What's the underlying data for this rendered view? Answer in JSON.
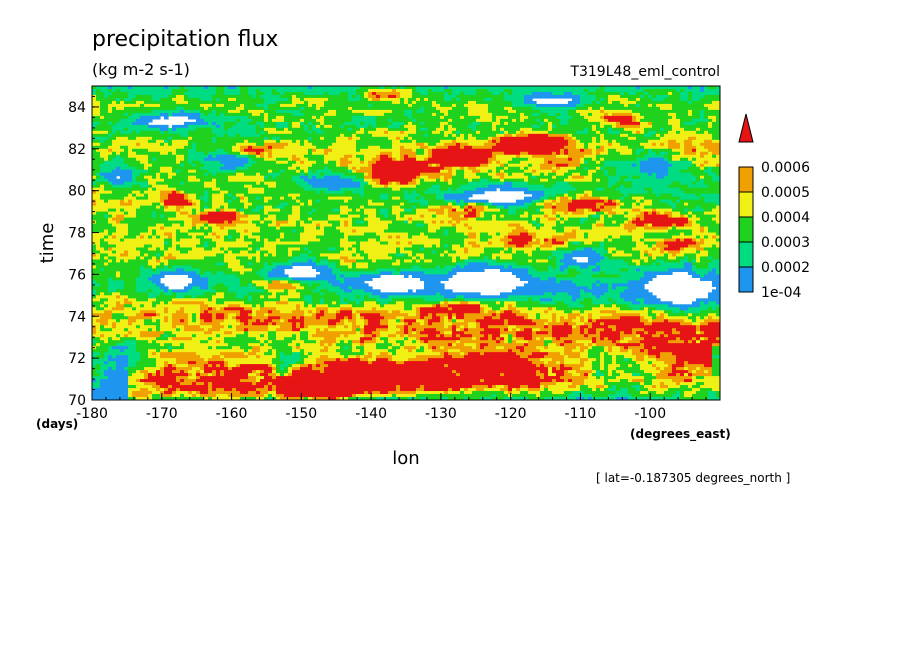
{
  "chart_data": {
    "type": "heatmap",
    "title": "precipitation flux",
    "subtitle": "(kg m-2 s-1)",
    "experiment": "T319L48_eml_control",
    "xlabel": "lon",
    "ylabel": "time",
    "x_units": "(degrees_east)",
    "y_units": "(days)",
    "footnote": "[ lat=-0.187305 degrees_north ]",
    "xlim": [
      -180,
      -90
    ],
    "ylim": [
      70,
      85
    ],
    "x_ticks": [
      -180,
      -170,
      -160,
      -150,
      -140,
      -130,
      -120,
      -110,
      -100
    ],
    "x_tick_labels": [
      "-180",
      "-170",
      "-160",
      "-150",
      "-140",
      "-130",
      "-120",
      "-110",
      "-100"
    ],
    "y_ticks": [
      70,
      72,
      74,
      76,
      78,
      80,
      82,
      84
    ],
    "y_tick_labels": [
      "70",
      "72",
      "74",
      "76",
      "78",
      "80",
      "82",
      "84"
    ],
    "colorbar": {
      "levels": [
        0.0001,
        0.0002,
        0.0003,
        0.0004,
        0.0005,
        0.0006
      ],
      "labels": [
        "1e-04",
        "0.0002",
        "0.0003",
        "0.0004",
        "0.0005",
        "0.0006"
      ],
      "colors": [
        "#1e96f0",
        "#00dc82",
        "#1ed21e",
        "#f0f014",
        "#f0a000",
        "#e61414"
      ],
      "below_color": "#ffffff",
      "extend": "max"
    },
    "bands": [
      {
        "y": 70.4,
        "x0": -173,
        "x1": -93,
        "slope": 0.02,
        "thick": 1.0,
        "amp": 0.00035
      },
      {
        "y": 71.6,
        "x0": -180,
        "x1": -92,
        "slope": -0.01,
        "thick": 0.9,
        "amp": 0.0003
      },
      {
        "y": 73.2,
        "x0": -180,
        "x1": -90,
        "slope": 0.0,
        "thick": 1.3,
        "amp": 0.00026
      },
      {
        "y": 74.6,
        "x0": -180,
        "x1": -90,
        "slope": -0.015,
        "thick": 1.1,
        "amp": 0.00025
      },
      {
        "y": 76.7,
        "x0": -180,
        "x1": -90,
        "slope": 0.0,
        "thick": 1.0,
        "amp": 0.00024
      },
      {
        "y": 78.5,
        "x0": -180,
        "x1": -90,
        "slope": 0.0,
        "thick": 1.3,
        "amp": 0.00028
      },
      {
        "y": 80.3,
        "x0": -180,
        "x1": -90,
        "slope": 0.01,
        "thick": 1.1,
        "amp": 0.00025
      },
      {
        "y": 82.3,
        "x0": -180,
        "x1": -90,
        "slope": 0.0,
        "thick": 1.2,
        "amp": 0.00026
      },
      {
        "y": 84.2,
        "x0": -180,
        "x1": -90,
        "slope": 0.0,
        "thick": 1.0,
        "amp": 0.00022
      }
    ],
    "blobs": [
      {
        "x": -146,
        "y": 70.6,
        "sx": 6.0,
        "sy": 0.45,
        "rot": 0.08,
        "amp": 0.0009
      },
      {
        "x": -137,
        "y": 71.2,
        "sx": 4.0,
        "sy": 0.45,
        "rot": 0.05,
        "amp": 0.0007
      },
      {
        "x": -130,
        "y": 70.8,
        "sx": 3.0,
        "sy": 0.35,
        "rot": 0.0,
        "amp": 0.0004
      },
      {
        "x": -136,
        "y": 80.9,
        "sx": 3.2,
        "sy": 0.5,
        "rot": 0.1,
        "amp": 0.00085
      },
      {
        "x": -127,
        "y": 81.6,
        "sx": 3.5,
        "sy": 0.35,
        "rot": 0.05,
        "amp": 0.00085
      },
      {
        "x": -117,
        "y": 82.2,
        "sx": 4.0,
        "sy": 0.35,
        "rot": 0.1,
        "amp": 0.00085
      },
      {
        "x": -168,
        "y": 79.6,
        "sx": 2.0,
        "sy": 0.3,
        "rot": 0.0,
        "amp": 0.0004
      },
      {
        "x": -162,
        "y": 78.8,
        "sx": 3.0,
        "sy": 0.3,
        "rot": 0.0,
        "amp": 0.00042
      },
      {
        "x": -158,
        "y": 82.0,
        "sx": 4.0,
        "sy": 0.35,
        "rot": 0.0,
        "amp": 0.00035
      },
      {
        "x": -110,
        "y": 79.4,
        "sx": 6.0,
        "sy": 0.4,
        "rot": 0.0,
        "amp": 0.0004
      },
      {
        "x": -98,
        "y": 78.6,
        "sx": 4.0,
        "sy": 0.35,
        "rot": 0.0,
        "amp": 0.0004
      },
      {
        "x": -96,
        "y": 77.5,
        "sx": 2.5,
        "sy": 0.3,
        "rot": 0.0,
        "amp": 0.0004
      },
      {
        "x": -128,
        "y": 74.3,
        "sx": 6.0,
        "sy": 0.35,
        "rot": 0.03,
        "amp": 0.00038
      },
      {
        "x": -126,
        "y": 79.1,
        "sx": 4.0,
        "sy": 0.3,
        "rot": 0.0,
        "amp": 0.00035
      },
      {
        "x": -122,
        "y": 71.8,
        "sx": 4.0,
        "sy": 0.3,
        "rot": -0.05,
        "amp": 0.00035
      },
      {
        "x": -104,
        "y": 83.4,
        "sx": 3.0,
        "sy": 0.3,
        "rot": 0.0,
        "amp": 0.00035
      },
      {
        "x": -138,
        "y": 84.6,
        "sx": 3.0,
        "sy": 0.3,
        "rot": 0.0,
        "amp": 0.00033
      },
      {
        "x": -152,
        "y": 75.5,
        "sx": 4.0,
        "sy": 0.3,
        "rot": 0.0,
        "amp": 0.00033
      },
      {
        "x": -118,
        "y": 77.6,
        "sx": 5.0,
        "sy": 0.35,
        "rot": 0.0,
        "amp": 0.00032
      }
    ],
    "dry_patches": [
      {
        "x": -176,
        "y": 71.8,
        "sx": 4.0,
        "sy": 0.9
      },
      {
        "x": -152,
        "y": 71.6,
        "sx": 3.0,
        "sy": 0.6
      },
      {
        "x": -105,
        "y": 71.5,
        "sx": 8.0,
        "sy": 1.0
      },
      {
        "x": -124,
        "y": 75.8,
        "sx": 6.0,
        "sy": 0.8
      },
      {
        "x": -150,
        "y": 76.2,
        "sx": 4.0,
        "sy": 0.6
      },
      {
        "x": -96,
        "y": 75.4,
        "sx": 4.0,
        "sy": 1.0
      },
      {
        "x": -121,
        "y": 79.7,
        "sx": 8.0,
        "sy": 0.6
      },
      {
        "x": -160,
        "y": 81.7,
        "sx": 4.0,
        "sy": 0.9
      },
      {
        "x": -176,
        "y": 80.6,
        "sx": 3.0,
        "sy": 0.6
      },
      {
        "x": -169,
        "y": 83.3,
        "sx": 6.0,
        "sy": 0.45
      },
      {
        "x": -100,
        "y": 81.2,
        "sx": 6.0,
        "sy": 0.7
      },
      {
        "x": -146,
        "y": 80.4,
        "sx": 5.0,
        "sy": 0.45
      },
      {
        "x": -110,
        "y": 76.8,
        "sx": 4.0,
        "sy": 0.5
      },
      {
        "x": -137,
        "y": 75.6,
        "sx": 4.0,
        "sy": 0.5
      },
      {
        "x": -168,
        "y": 75.7,
        "sx": 3.0,
        "sy": 0.5
      },
      {
        "x": -114,
        "y": 84.3,
        "sx": 5.0,
        "sy": 0.4
      }
    ]
  }
}
